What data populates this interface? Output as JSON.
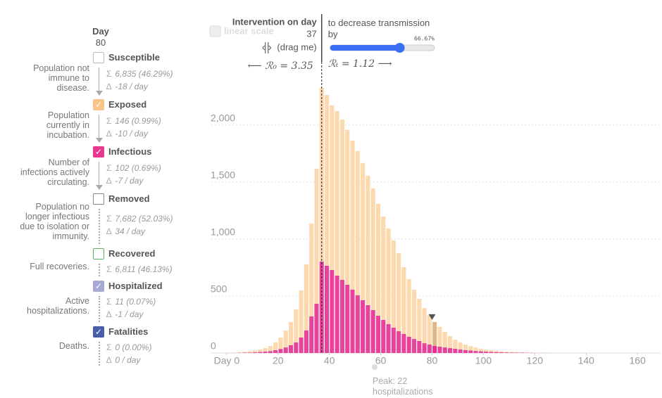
{
  "sidebar": {
    "day_label": "Day",
    "day": 80,
    "compartments": [
      {
        "name": "Susceptible",
        "description": "Population not immune to disease.",
        "total": "6,835 (46.29%)",
        "change": "-18 / day",
        "color": "#bbbbbb",
        "checked": false
      },
      {
        "name": "Exposed",
        "description": "Population currently in incubation.",
        "total": "146 (0.99%)",
        "change": "-10 / day",
        "color": "#f8c48a",
        "checked": true
      },
      {
        "name": "Infectious",
        "description": "Number of infections actively circulating.",
        "total": "102 (0.69%)",
        "change": "-7 / day",
        "color": "#e8398f",
        "checked": true
      },
      {
        "name": "Removed",
        "description": "Population no longer infectious due to isolation or immunity.",
        "total": "7,682 (52.03%)",
        "change": "34 / day",
        "color": "#888888",
        "checked": false
      },
      {
        "name": "Recovered",
        "description": "Full recoveries.",
        "total": "6,811 (46.13%)",
        "color": "#5cb85c",
        "checked": false
      },
      {
        "name": "Hospitalized",
        "description": "Active hospitalizations.",
        "total": "11 (0.07%)",
        "change": "-1 / day",
        "color": "#a6a8d6",
        "checked": true
      },
      {
        "name": "Fatalities",
        "description": "Deaths.",
        "total": "0 (0.00%)",
        "change": "0 / day",
        "color": "#4a5ea8",
        "checked": true
      }
    ]
  },
  "intervention": {
    "title": "Intervention on day",
    "day": 37,
    "hint": "(drag me)",
    "effect_label": "to decrease transmission by",
    "strength": 66.67,
    "strength_label": "66.67%",
    "r0": "⟵ ℛ₀ = 3.35",
    "rt": "ℛₜ = 1.12 ⟶"
  },
  "chart_data": {
    "type": "bar",
    "stacked": true,
    "scale_toggle": "linear scale",
    "annotation": "Peak: 22 hospitalizations",
    "x": [
      0,
      2,
      4,
      6,
      8,
      10,
      12,
      14,
      16,
      18,
      20,
      22,
      24,
      26,
      28,
      30,
      32,
      34,
      36,
      38,
      40,
      42,
      44,
      46,
      48,
      50,
      52,
      54,
      56,
      58,
      60,
      62,
      64,
      66,
      68,
      70,
      72,
      74,
      76,
      78,
      80,
      82,
      84,
      86,
      88,
      90,
      92,
      94,
      96,
      98,
      100,
      102,
      104,
      106,
      108,
      110,
      112,
      114,
      116,
      118,
      120,
      122,
      124,
      126,
      128,
      130,
      132,
      134,
      136,
      138,
      140,
      142,
      144,
      146,
      148,
      150,
      152,
      154,
      156,
      158,
      160,
      162,
      164
    ],
    "series": [
      {
        "color": "#e8439b",
        "values": [
          1,
          1,
          2,
          3,
          4,
          6,
          9,
          12,
          17,
          25,
          36,
          49,
          68,
          93,
          136,
          198,
          321,
          432,
          802,
          765,
          728,
          679,
          642,
          599,
          556,
          506,
          463,
          420,
          377,
          327,
          290,
          253,
          222,
          191,
          167,
          142,
          123,
          105,
          86,
          74,
          62,
          56,
          49,
          43,
          37,
          31,
          26,
          22,
          18,
          15,
          12,
          10,
          8,
          6,
          5,
          4,
          3,
          3,
          2,
          2,
          1,
          1,
          1,
          0,
          0,
          0,
          0,
          0,
          0,
          0,
          0,
          0,
          0,
          0,
          0,
          0,
          0,
          0,
          0,
          0,
          0,
          0,
          0
        ]
      },
      {
        "color": "#fcd9af",
        "values": [
          2,
          4,
          5,
          7,
          11,
          16,
          22,
          31,
          45,
          68,
          100,
          149,
          204,
          290,
          413,
          580,
          815,
          1185,
          1525,
          1500,
          1445,
          1444,
          1407,
          1358,
          1308,
          1266,
          1204,
          1136,
          1067,
          982,
          908,
          840,
          766,
          686,
          586,
          506,
          433,
          370,
          309,
          259,
          210,
          172,
          136,
          105,
          80,
          62,
          48,
          38,
          30,
          23,
          18,
          14,
          11,
          9,
          7,
          5,
          4,
          3,
          3,
          2,
          2,
          1,
          1,
          1,
          1,
          1,
          1,
          1,
          1,
          1,
          1,
          0,
          0,
          0,
          0,
          0,
          0,
          0,
          0,
          0,
          0,
          0,
          0
        ]
      }
    ],
    "xlim": [
      -6,
      169
    ],
    "ylim": [
      0,
      2480
    ],
    "xticks": [
      {
        "value": 0,
        "label": "Day 0"
      },
      20,
      40,
      60,
      80,
      100,
      120,
      140,
      160
    ],
    "yticks": [
      0,
      500,
      {
        "value": 1000,
        "label": "1,000"
      },
      {
        "value": 1500,
        "label": "1,500"
      },
      {
        "value": 2000,
        "label": "2,000"
      }
    ],
    "grid": true
  }
}
